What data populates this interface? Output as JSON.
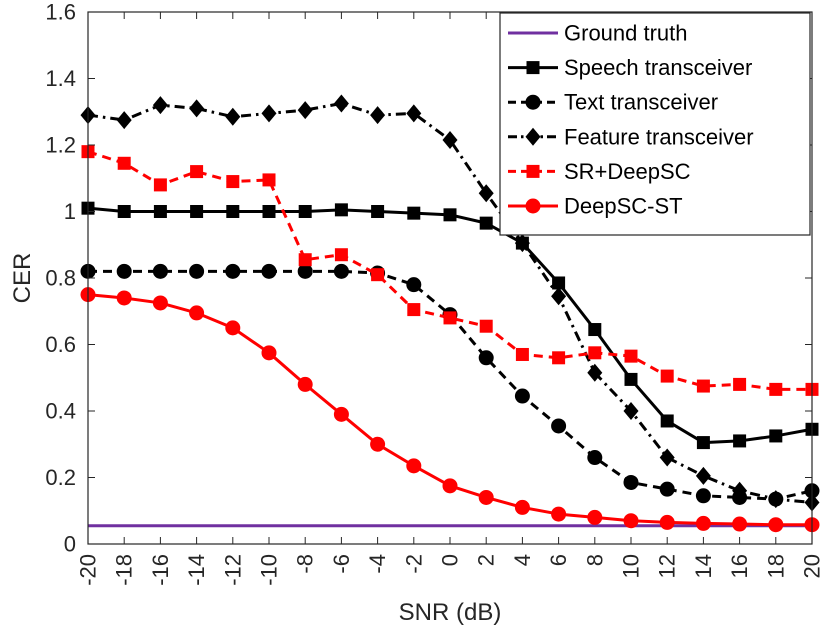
{
  "chart_data": {
    "type": "line",
    "xlabel": "SNR (dB)",
    "ylabel": "CER",
    "xlim": [
      -20,
      20
    ],
    "ylim": [
      0,
      1.6
    ],
    "x": [
      -20,
      -18,
      -16,
      -14,
      -12,
      -10,
      -8,
      -6,
      -4,
      -2,
      0,
      2,
      4,
      6,
      8,
      10,
      12,
      14,
      16,
      18,
      20
    ],
    "xticks": [
      "-20",
      "-18",
      "-16",
      "-14",
      "-12",
      "-10",
      "-8",
      "-6",
      "-4",
      "-2",
      "0",
      "2",
      "4",
      "6",
      "8",
      "10",
      "12",
      "14",
      "16",
      "18",
      "20"
    ],
    "yticks": [
      "0",
      "0.2",
      "0.4",
      "0.6",
      "0.8",
      "1",
      "1.2",
      "1.4",
      "1.6"
    ],
    "legend_position": "top-right",
    "grid": false,
    "series": [
      {
        "name": "Ground truth",
        "color": "#7030a0",
        "dash": "solid",
        "marker": "none",
        "values": [
          0.055,
          0.055,
          0.055,
          0.055,
          0.055,
          0.055,
          0.055,
          0.055,
          0.055,
          0.055,
          0.055,
          0.055,
          0.055,
          0.055,
          0.055,
          0.055,
          0.055,
          0.055,
          0.055,
          0.055,
          0.055
        ]
      },
      {
        "name": "Speech transceiver",
        "color": "#000000",
        "dash": "solid",
        "marker": "square",
        "values": [
          1.01,
          1.0,
          1.0,
          1.0,
          1.0,
          1.0,
          1.0,
          1.005,
          1.0,
          0.995,
          0.99,
          0.965,
          0.905,
          0.785,
          0.645,
          0.495,
          0.37,
          0.305,
          0.31,
          0.325,
          0.345
        ]
      },
      {
        "name": "Text transceiver",
        "color": "#000000",
        "dash": "dashed",
        "marker": "circle",
        "values": [
          0.82,
          0.82,
          0.82,
          0.82,
          0.82,
          0.82,
          0.82,
          0.82,
          0.815,
          0.78,
          0.69,
          0.56,
          0.445,
          0.355,
          0.26,
          0.185,
          0.165,
          0.145,
          0.14,
          0.135,
          0.16
        ]
      },
      {
        "name": "Feature transceiver",
        "color": "#000000",
        "dash": "dashdot",
        "marker": "diamond",
        "values": [
          1.29,
          1.275,
          1.32,
          1.31,
          1.285,
          1.295,
          1.305,
          1.325,
          1.29,
          1.295,
          1.215,
          1.055,
          0.905,
          0.745,
          0.515,
          0.4,
          0.26,
          0.205,
          0.16,
          0.135,
          0.125
        ]
      },
      {
        "name": "SR+DeepSC",
        "color": "#ff0000",
        "dash": "dashed",
        "marker": "square",
        "values": [
          1.18,
          1.145,
          1.08,
          1.12,
          1.09,
          1.095,
          0.855,
          0.87,
          0.81,
          0.705,
          0.68,
          0.655,
          0.57,
          0.56,
          0.575,
          0.565,
          0.505,
          0.475,
          0.48,
          0.465,
          0.465
        ]
      },
      {
        "name": "DeepSC-ST",
        "color": "#ff0000",
        "dash": "solid",
        "marker": "circle",
        "values": [
          0.75,
          0.74,
          0.725,
          0.695,
          0.65,
          0.575,
          0.48,
          0.39,
          0.3,
          0.235,
          0.175,
          0.14,
          0.11,
          0.09,
          0.08,
          0.07,
          0.065,
          0.062,
          0.06,
          0.058,
          0.058
        ]
      }
    ]
  }
}
